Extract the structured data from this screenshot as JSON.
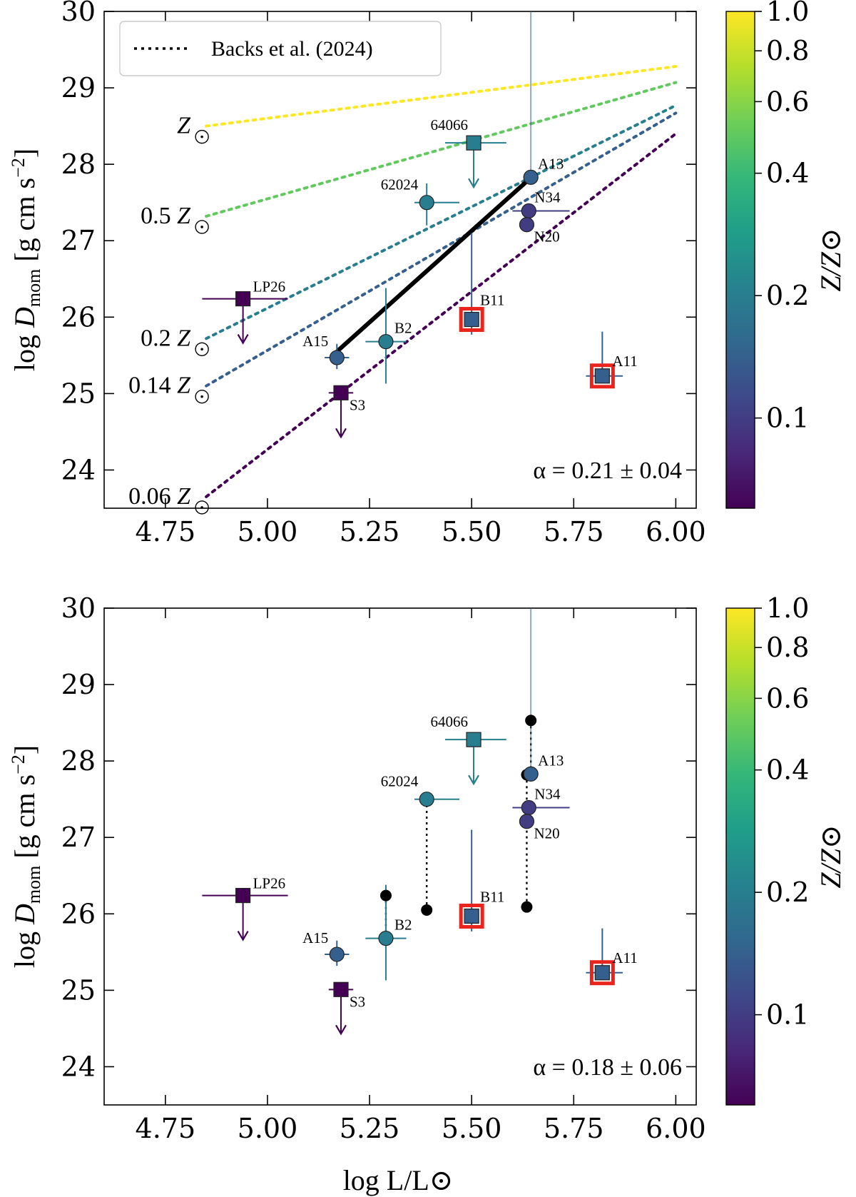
{
  "chart_data": [
    {
      "type": "scatter",
      "panel": "top",
      "xlim": [
        4.6,
        6.05
      ],
      "ylim": [
        23.5,
        30
      ],
      "xticks": [
        "4.75",
        "5.00",
        "5.25",
        "5.50",
        "5.75",
        "6.00"
      ],
      "yticks": [
        "24",
        "25",
        "26",
        "27",
        "28",
        "29",
        "30"
      ],
      "ylabel": "log D_mom [g cm s^-2]",
      "legend": {
        "label": "Backs et al. (2024)",
        "position": "top-left"
      },
      "annotation": "α = 0.21 ± 0.04",
      "metallicity_lines": [
        {
          "label": "Z",
          "factor": "",
          "z": 1.0,
          "x": [
            4.85,
            6.0
          ],
          "y": [
            28.5,
            29.28
          ]
        },
        {
          "label": "0.5 Z",
          "factor": "0.5",
          "z": 0.5,
          "x": [
            4.85,
            6.0
          ],
          "y": [
            27.32,
            29.07
          ]
        },
        {
          "label": "0.2 Z",
          "factor": "0.2",
          "z": 0.2,
          "x": [
            4.85,
            6.0
          ],
          "y": [
            25.72,
            28.77
          ]
        },
        {
          "label": "0.14 Z",
          "factor": "0.14",
          "z": 0.14,
          "x": [
            4.85,
            6.0
          ],
          "y": [
            25.1,
            28.67
          ]
        },
        {
          "label": "0.06 Z",
          "factor": "0.06",
          "z": 0.06,
          "x": [
            4.85,
            6.0
          ],
          "y": [
            23.65,
            28.4
          ]
        }
      ],
      "fit_line": {
        "x": [
          5.17,
          5.64
        ],
        "y": [
          25.55,
          27.8
        ]
      },
      "points": [
        {
          "name": "LP26",
          "x": 4.94,
          "y": 26.24,
          "z": 0.06,
          "marker": "square",
          "xerr": [
            0.1,
            0.11
          ],
          "yerr": [
            0,
            0
          ],
          "upper_limit": true,
          "highlight": false
        },
        {
          "name": "A15",
          "x": 5.17,
          "y": 25.47,
          "z": 0.14,
          "marker": "circle",
          "xerr": [
            0.03,
            0.03
          ],
          "yerr": [
            0.15,
            0.18
          ],
          "upper_limit": false,
          "highlight": false
        },
        {
          "name": "S3",
          "x": 5.18,
          "y": 25.01,
          "z": 0.06,
          "marker": "square",
          "xerr": [
            0.03,
            0.03
          ],
          "yerr": [
            0,
            0
          ],
          "upper_limit": true,
          "highlight": false
        },
        {
          "name": "B2",
          "x": 5.29,
          "y": 25.68,
          "z": 0.2,
          "marker": "circle",
          "xerr": [
            0.05,
            0.05
          ],
          "yerr": [
            0.55,
            0.7
          ],
          "upper_limit": false,
          "highlight": false
        },
        {
          "name": "62024",
          "x": 5.39,
          "y": 27.5,
          "z": 0.2,
          "marker": "circle",
          "xerr": [
            0.03,
            0.08
          ],
          "yerr": [
            0.3,
            0.25
          ],
          "upper_limit": false,
          "highlight": false
        },
        {
          "name": "64066",
          "x": 5.505,
          "y": 28.28,
          "z": 0.2,
          "marker": "square",
          "xerr": [
            0.07,
            0.08
          ],
          "yerr": [
            0,
            0
          ],
          "upper_limit": true,
          "highlight": false
        },
        {
          "name": "B11",
          "x": 5.5,
          "y": 25.97,
          "z": 0.14,
          "marker": "square",
          "xerr": [
            0,
            0
          ],
          "yerr": [
            0.2,
            1.13
          ],
          "upper_limit": false,
          "highlight": true
        },
        {
          "name": "A13",
          "x": 5.645,
          "y": 27.83,
          "z": 0.14,
          "marker": "circle",
          "xerr": [
            0,
            0
          ],
          "yerr": [
            0,
            2.2
          ],
          "upper_limit": false,
          "highlight": false
        },
        {
          "name": "N34",
          "x": 5.64,
          "y": 27.39,
          "z": 0.1,
          "marker": "circle",
          "xerr": [
            0.04,
            0.1
          ],
          "yerr": [
            0,
            0
          ],
          "upper_limit": false,
          "highlight": false
        },
        {
          "name": "N20",
          "x": 5.635,
          "y": 27.21,
          "z": 0.1,
          "marker": "circle",
          "xerr": [
            0,
            0
          ],
          "yerr": [
            0,
            0
          ],
          "upper_limit": false,
          "highlight": false
        },
        {
          "name": "A11",
          "x": 5.82,
          "y": 25.23,
          "z": 0.14,
          "marker": "square",
          "xerr": [
            0.04,
            0.05
          ],
          "yerr": [
            0,
            0.58
          ],
          "upper_limit": false,
          "highlight": true
        }
      ]
    },
    {
      "type": "scatter",
      "panel": "bottom",
      "xlim": [
        4.6,
        6.05
      ],
      "ylim": [
        23.5,
        30
      ],
      "xticks": [
        "4.75",
        "5.00",
        "5.25",
        "5.50",
        "5.75",
        "6.00"
      ],
      "yticks": [
        "24",
        "25",
        "26",
        "27",
        "28",
        "29",
        "30"
      ],
      "xlabel": "log L/L⊙",
      "ylabel": "log D_mom [g cm s^-2]",
      "annotation": "α = 0.18 ± 0.06",
      "black_pairs": [
        {
          "x": 5.29,
          "y_from": 26.24,
          "y_to": 25.68
        },
        {
          "x": 5.39,
          "y_from": 26.05,
          "y_to": 27.5
        },
        {
          "x": 5.645,
          "y_from": 28.53,
          "y_to": 27.83
        },
        {
          "x": 5.635,
          "y_from": 27.82,
          "y_to": 27.39
        },
        {
          "x": 5.635,
          "y_from": 26.09,
          "y_to": 27.21
        }
      ],
      "points": [
        {
          "name": "LP26",
          "x": 4.94,
          "y": 26.24,
          "z": 0.06,
          "marker": "square",
          "xerr": [
            0.1,
            0.11
          ],
          "yerr": [
            0,
            0
          ],
          "upper_limit": true,
          "highlight": false
        },
        {
          "name": "A15",
          "x": 5.17,
          "y": 25.47,
          "z": 0.14,
          "marker": "circle",
          "xerr": [
            0.03,
            0.03
          ],
          "yerr": [
            0.15,
            0.18
          ],
          "upper_limit": false,
          "highlight": false
        },
        {
          "name": "S3",
          "x": 5.18,
          "y": 25.01,
          "z": 0.06,
          "marker": "square",
          "xerr": [
            0.03,
            0.03
          ],
          "yerr": [
            0,
            0
          ],
          "upper_limit": true,
          "highlight": false
        },
        {
          "name": "B2",
          "x": 5.29,
          "y": 25.68,
          "z": 0.2,
          "marker": "circle",
          "xerr": [
            0.05,
            0.05
          ],
          "yerr": [
            0.55,
            0.7
          ],
          "upper_limit": false,
          "highlight": false
        },
        {
          "name": "62024",
          "x": 5.39,
          "y": 27.5,
          "z": 0.2,
          "marker": "circle",
          "xerr": [
            0.03,
            0.08
          ],
          "yerr": [
            0,
            0
          ],
          "upper_limit": false,
          "highlight": false
        },
        {
          "name": "64066",
          "x": 5.505,
          "y": 28.28,
          "z": 0.2,
          "marker": "square",
          "xerr": [
            0.07,
            0.08
          ],
          "yerr": [
            0,
            0
          ],
          "upper_limit": true,
          "highlight": false
        },
        {
          "name": "B11",
          "x": 5.5,
          "y": 25.97,
          "z": 0.14,
          "marker": "square",
          "xerr": [
            0,
            0
          ],
          "yerr": [
            0.2,
            1.13
          ],
          "upper_limit": false,
          "highlight": true
        },
        {
          "name": "A13",
          "x": 5.645,
          "y": 27.83,
          "z": 0.14,
          "marker": "circle",
          "xerr": [
            0,
            0
          ],
          "yerr": [
            0,
            2.2
          ],
          "upper_limit": false,
          "highlight": false
        },
        {
          "name": "N34",
          "x": 5.64,
          "y": 27.39,
          "z": 0.1,
          "marker": "circle",
          "xerr": [
            0.04,
            0.1
          ],
          "yerr": [
            0,
            0
          ],
          "upper_limit": false,
          "highlight": false
        },
        {
          "name": "N20",
          "x": 5.635,
          "y": 27.21,
          "z": 0.1,
          "marker": "circle",
          "xerr": [
            0,
            0
          ],
          "yerr": [
            0,
            0
          ],
          "upper_limit": false,
          "highlight": false
        },
        {
          "name": "A11",
          "x": 5.82,
          "y": 25.23,
          "z": 0.14,
          "marker": "square",
          "xerr": [
            0.04,
            0.05
          ],
          "yerr": [
            0,
            0.58
          ],
          "upper_limit": false,
          "highlight": true
        }
      ]
    }
  ],
  "colorbar": {
    "label": "Z/Z⊙",
    "range": [
      0.06,
      1.0
    ],
    "scale": "log",
    "ticks": [
      {
        "value": 1.0,
        "label": "1.0"
      },
      {
        "value": 0.8,
        "label": "0.8"
      },
      {
        "value": 0.6,
        "label": "0.6"
      },
      {
        "value": 0.4,
        "label": "0.4"
      },
      {
        "value": 0.2,
        "label": "0.2"
      },
      {
        "value": 0.1,
        "label": "0.1"
      }
    ],
    "colormap": [
      "#440154",
      "#482878",
      "#3e4989",
      "#31688e",
      "#26828e",
      "#1f9e89",
      "#35b779",
      "#6ece58",
      "#b5de2b",
      "#fde725"
    ]
  },
  "colors": {
    "highlight": "#e8241c",
    "black": "#000000"
  }
}
